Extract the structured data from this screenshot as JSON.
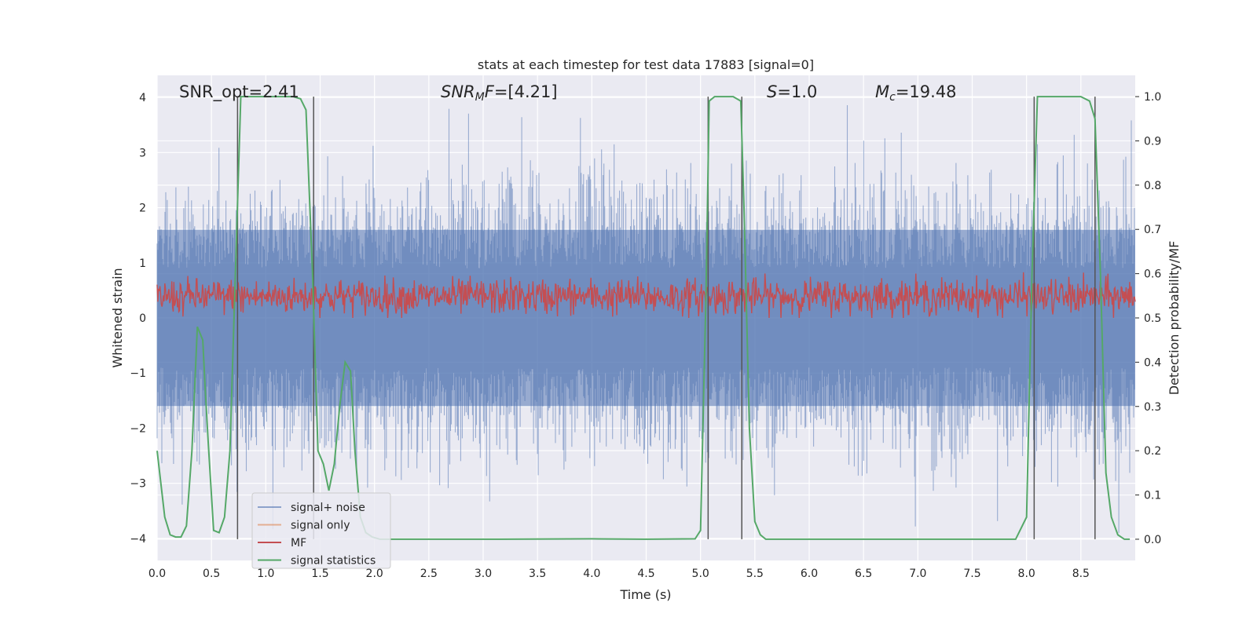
{
  "chart_data": {
    "type": "line",
    "title": "stats at each timestep for test data 17883 [signal=0]",
    "xlabel": "Time (s)",
    "ylabel_left": "Whitened strain",
    "ylabel_right": "Detection probability/MF",
    "xlim": [
      0.0,
      9.0
    ],
    "ylim_left": [
      -4.4,
      4.4
    ],
    "ylim_right": [
      -0.048,
      1.048
    ],
    "xticks": [
      "0.0",
      "0.5",
      "1.0",
      "1.5",
      "2.0",
      "2.5",
      "3.0",
      "3.5",
      "4.0",
      "4.5",
      "5.0",
      "5.5",
      "6.0",
      "6.5",
      "7.0",
      "7.5",
      "8.0",
      "8.5"
    ],
    "yticks_left": [
      "−4",
      "−3",
      "−2",
      "−1",
      "0",
      "1",
      "2",
      "3",
      "4"
    ],
    "yticks_right": [
      "0.0",
      "0.1",
      "0.2",
      "0.3",
      "0.4",
      "0.5",
      "0.6",
      "0.7",
      "0.8",
      "0.9",
      "1.0"
    ],
    "grid": true,
    "legend_position": "lower-left",
    "annotations": {
      "snr_opt": "SNR_opt=2.41",
      "snr_mf": "SNR_MF=[4.21]",
      "s": "S=1.0",
      "mc": "M_c=19.48"
    },
    "series": [
      {
        "name": "signal+ noise",
        "color": "#4c72b0",
        "description_values": "whitened strain noise, amplitude roughly within [-3.9, 4.0]"
      },
      {
        "name": "signal only",
        "color": "#dd8452",
        "values": []
      },
      {
        "name": "MF",
        "color": "#c44e52",
        "right_axis_range": [
          0.5,
          0.62
        ]
      },
      {
        "name": "signal statistics",
        "color": "#55a868",
        "x": [
          0.0,
          0.07,
          0.12,
          0.17,
          0.22,
          0.27,
          0.32,
          0.37,
          0.42,
          0.44,
          0.47,
          0.52,
          0.57,
          0.62,
          0.67,
          0.72,
          0.77,
          0.82,
          0.87,
          0.95,
          1.05,
          1.15,
          1.25,
          1.32,
          1.37,
          1.43,
          1.48,
          1.53,
          1.58,
          1.63,
          1.68,
          1.73,
          1.78,
          1.82,
          1.87,
          1.92,
          1.98,
          2.05,
          2.15,
          3.0,
          4.0,
          4.5,
          4.95,
          5.0,
          5.05,
          5.08,
          5.13,
          5.18,
          5.23,
          5.3,
          5.37,
          5.4,
          5.45,
          5.5,
          5.55,
          5.6,
          5.65,
          5.7,
          6.0,
          7.0,
          7.9,
          8.0,
          8.05,
          8.1,
          8.15,
          8.3,
          8.5,
          8.58,
          8.63,
          8.68,
          8.73,
          8.78,
          8.84,
          8.9,
          8.95
        ],
        "y": [
          0.2,
          0.05,
          0.01,
          0.005,
          0.005,
          0.03,
          0.2,
          0.48,
          0.45,
          0.35,
          0.22,
          0.02,
          0.015,
          0.05,
          0.2,
          0.6,
          1.0,
          1.0,
          1.0,
          1.0,
          1.0,
          1.0,
          1.0,
          0.995,
          0.97,
          0.6,
          0.2,
          0.17,
          0.11,
          0.17,
          0.3,
          0.4,
          0.38,
          0.2,
          0.05,
          0.015,
          0.005,
          0.0,
          0.0,
          0.0,
          0.001,
          0.0,
          0.001,
          0.02,
          0.55,
          0.99,
          1.0,
          1.0,
          1.0,
          1.0,
          0.99,
          0.75,
          0.25,
          0.04,
          0.01,
          0.0,
          0.0,
          0.0,
          0.0,
          0.0,
          0.0,
          0.05,
          0.6,
          1.0,
          1.0,
          1.0,
          1.0,
          0.99,
          0.95,
          0.6,
          0.15,
          0.05,
          0.01,
          0.0,
          0.0
        ]
      }
    ],
    "event_markers_x": [
      0.74,
      1.44,
      5.07,
      5.38,
      8.07,
      8.63
    ]
  }
}
